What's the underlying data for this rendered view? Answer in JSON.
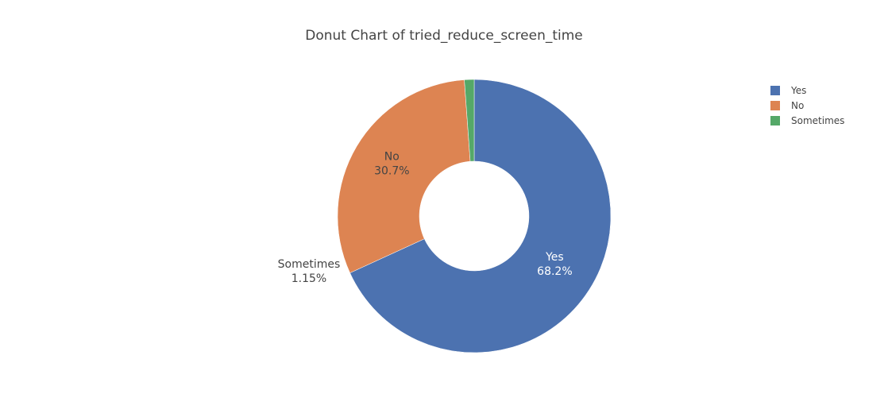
{
  "chart_data": {
    "type": "pie",
    "title": "Donut Chart of tried_reduce_screen_time",
    "hole": true,
    "legend_position": "top-right",
    "slices": [
      {
        "label": "Yes",
        "value": 68.2,
        "percent_text": "68.2%",
        "color": "#4c72b0",
        "label_color": "#ffffff"
      },
      {
        "label": "No",
        "value": 30.7,
        "percent_text": "30.7%",
        "color": "#dd8452",
        "label_color": "#444444"
      },
      {
        "label": "Sometimes",
        "value": 1.15,
        "percent_text": "1.15%",
        "color": "#55a868",
        "label_color": "#444444"
      }
    ]
  }
}
